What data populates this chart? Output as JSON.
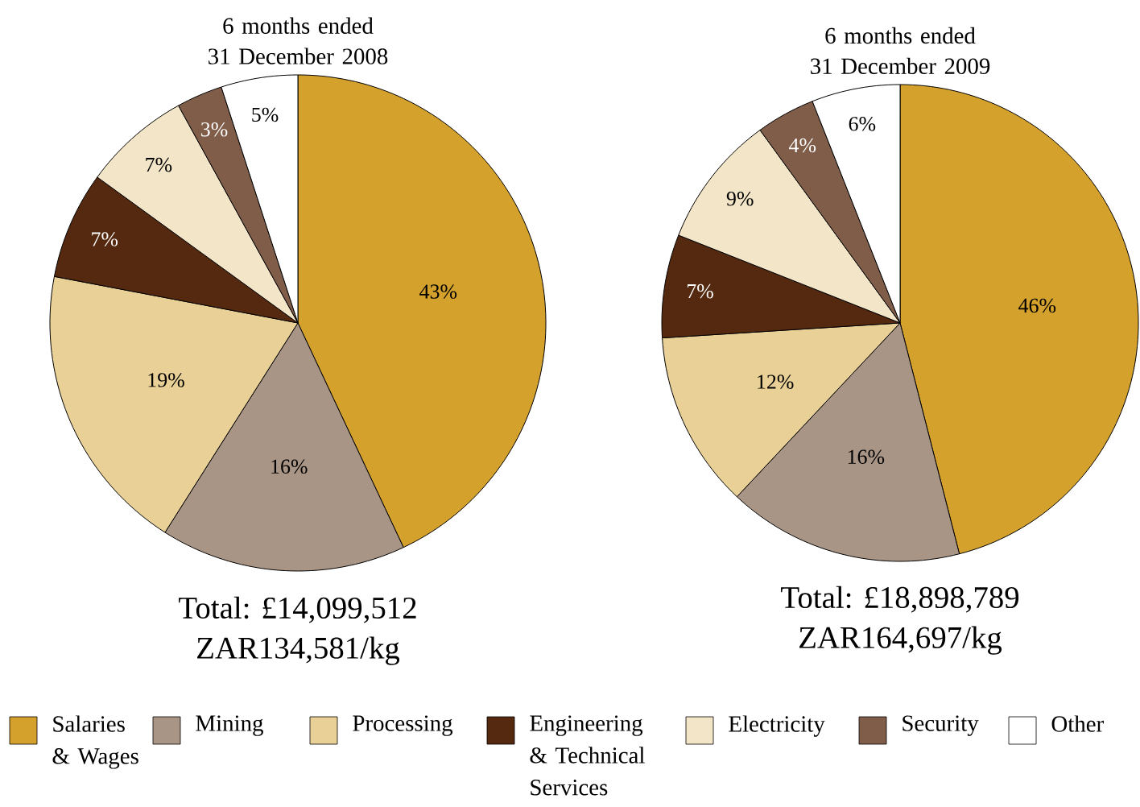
{
  "chart_data": [
    {
      "type": "pie",
      "title": "6 months ended 31 December 2008",
      "categories": [
        "Salaries & Wages",
        "Mining",
        "Processing",
        "Engineering & Technical Services",
        "Electricity",
        "Security",
        "Other"
      ],
      "values": [
        43,
        16,
        19,
        7,
        7,
        3,
        5
      ],
      "value_labels": [
        "43%",
        "16%",
        "19%",
        "7%",
        "7%",
        "3%",
        "5%"
      ],
      "colors": [
        "#d4a12c",
        "#a99585",
        "#e8d096",
        "#55290f",
        "#f3e5c7",
        "#7f5d49",
        "#ffffff"
      ],
      "legend": "bottom",
      "annotations": [
        "Total: £14,099,512",
        "ZAR134,581/kg"
      ]
    },
    {
      "type": "pie",
      "title": "6 months ended 31 December 2009",
      "categories": [
        null,
        null,
        null,
        null,
        null,
        null,
        null
      ],
      "values": [
        46,
        16,
        12,
        7,
        9,
        4,
        6
      ],
      "value_labels": [
        "46%",
        "16%",
        "12%",
        "7%",
        "9%",
        "4%",
        "6%"
      ],
      "colors": [
        "#d4a12c",
        "#a99585",
        "#e8d096",
        "#55290f",
        "#f3e5c7",
        "#7f5d49",
        "#ffffff"
      ],
      "annotations": [
        "Total: £18,898,789",
        "ZAR164,697/kg"
      ]
    }
  ]
}
